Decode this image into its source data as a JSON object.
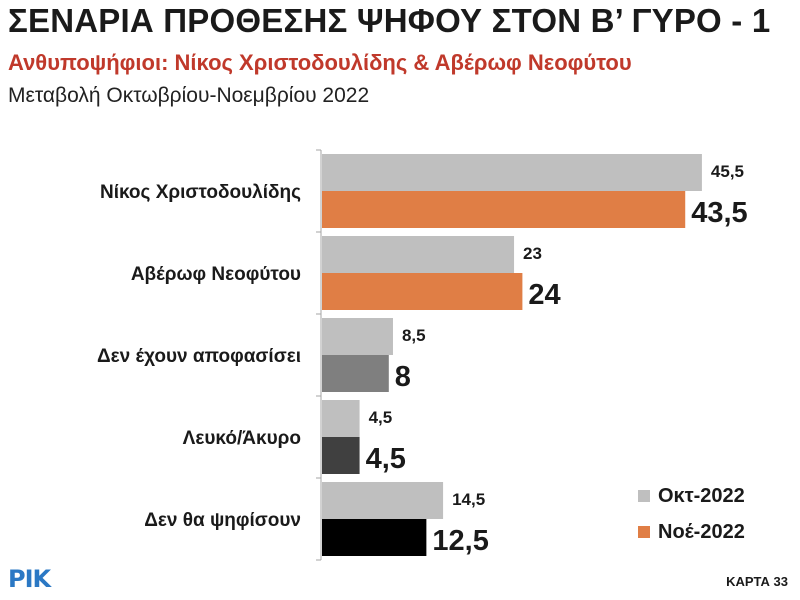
{
  "header": {
    "title": "ΣΕΝΑΡΙΑ ΠΡΟΘΕΣΗΣ ΨΗΦΟΥ ΣΤΟΝ Β’ ΓΥΡΟ - 1",
    "subtitle": "Ανθυποψήφιοι: Νίκος Χριστοδουλίδης & Αβέρωφ Νεοφύτου",
    "period": "Μεταβολή Οκτωβρίου-Νοεμβρίου 2022"
  },
  "chart_data": {
    "type": "bar",
    "orientation": "horizontal",
    "categories": [
      "Νίκος Χριστοδουλίδης",
      "Αβέρωφ Νεοφύτου",
      "Δεν έχουν αποφασίσει",
      "Λευκό/Άκυρο",
      "Δεν θα ψηφίσουν"
    ],
    "series": [
      {
        "name": "Οκτ-2022",
        "values": [
          45.5,
          23,
          8.5,
          4.5,
          14.5
        ],
        "labels": [
          "45,5",
          "23",
          "8,5",
          "4,5",
          "14,5"
        ],
        "color": "#bfbfbf"
      },
      {
        "name": "Νοέ-2022",
        "values": [
          43.5,
          24,
          8,
          4.5,
          12.5
        ],
        "labels": [
          "43,5",
          "24",
          "8",
          "4,5",
          "12,5"
        ],
        "colors": [
          "#e07e45",
          "#e07e45",
          "#7f7f7f",
          "#404040",
          "#000000"
        ]
      }
    ],
    "xlim": [
      0,
      50
    ],
    "grid": false,
    "legend_position": "bottom-right"
  },
  "legend": [
    {
      "label": "Οκτ-2022",
      "color": "#bfbfbf"
    },
    {
      "label": "Νοέ-2022",
      "color": "#e07e45"
    }
  ],
  "branding": {
    "logo": "ΡΙΚ",
    "page_label": "ΚΑΡΤΑ 33"
  }
}
